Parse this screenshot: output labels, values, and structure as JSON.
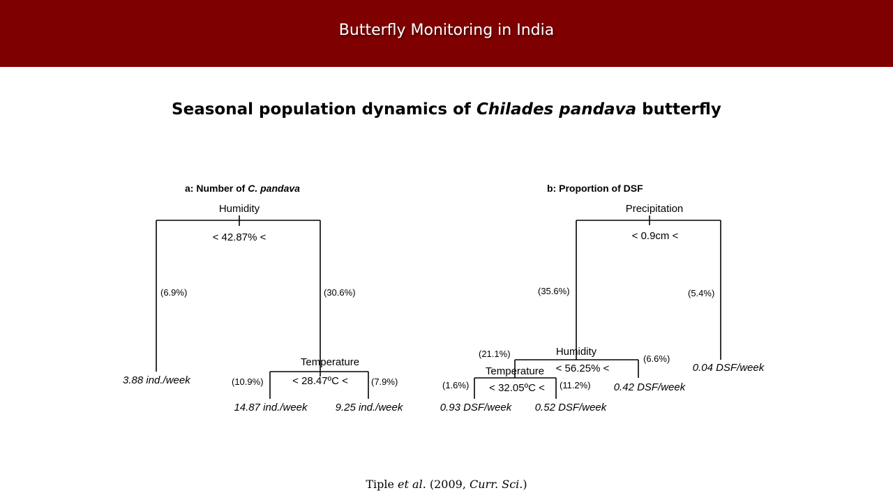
{
  "header": {
    "title": "Butterfly Monitoring in India"
  },
  "slide": {
    "title_pre": "Seasonal population dynamics of ",
    "title_italic": "Chilades pandava",
    "title_post": " butterfly"
  },
  "tree_a": {
    "heading_pre": "a: Number of ",
    "heading_italic": "C. pandava",
    "root_variable": "Humidity",
    "root_split": "< 42.87% <",
    "left_pct": "(6.9%)",
    "right_pct": "(30.6%)",
    "left_leaf": "3.88 ind./week",
    "node2_variable": "Temperature",
    "node2_split": "< 28.47ºC <",
    "node2_left_pct": "(10.9%)",
    "node2_right_pct": "(7.9%)",
    "node2_left_leaf": "14.87 ind./week",
    "node2_right_leaf": "9.25 ind./week"
  },
  "tree_b": {
    "heading": "b: Proportion of DSF",
    "root_variable": "Precipitation",
    "root_split": "< 0.9cm <",
    "left_pct": "(35.6%)",
    "right_pct": "(5.4%)",
    "right_leaf": "0.04 DSF/week",
    "node2_variable": "Humidity",
    "node2_split": "< 56.25% <",
    "node2_left_pct": "(21.1%)",
    "node2_right_pct": "(6.6%)",
    "node2_right_leaf": "0.42 DSF/week",
    "node3_variable": "Temperature",
    "node3_split": "< 32.05ºC <",
    "node3_left_pct": "(1.6%)",
    "node3_right_pct": "(11.2%)",
    "node3_left_leaf": "0.93 DSF/week",
    "node3_right_leaf": "0.52 DSF/week"
  },
  "citation": {
    "author": "Tiple ",
    "etal": "et al",
    "mid": ". (2009, ",
    "journal": "Curr. Sci.",
    "end": ")"
  }
}
